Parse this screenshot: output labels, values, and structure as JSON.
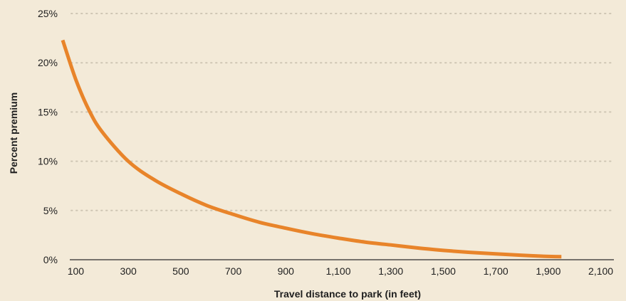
{
  "chart_data": {
    "type": "line",
    "xlabel": "Travel distance to park (in feet)",
    "ylabel": "Percent premium",
    "xlim": [
      50,
      2150
    ],
    "ylim": [
      0,
      25
    ],
    "x_ticks": [
      100,
      300,
      500,
      700,
      900,
      1100,
      1300,
      1500,
      1700,
      1900,
      2100
    ],
    "x_tick_labels": [
      "100",
      "300",
      "500",
      "700",
      "900",
      "1,100",
      "1,300",
      "1,500",
      "1,700",
      "1,900",
      "2,100"
    ],
    "y_ticks": [
      0,
      5,
      10,
      15,
      20,
      25
    ],
    "y_tick_labels": [
      "0%",
      "5%",
      "10%",
      "15%",
      "20%",
      "25%"
    ],
    "grid": true,
    "line_color": "#e8842a",
    "series": [
      {
        "x": [
          50,
          100,
          150,
          200,
          300,
          400,
          500,
          600,
          700,
          800,
          900,
          1000,
          1100,
          1200,
          1300,
          1400,
          1500,
          1600,
          1700,
          1800,
          1900,
          1950
        ],
        "y": [
          22.3,
          18.3,
          15.2,
          13.0,
          10.0,
          8.1,
          6.7,
          5.5,
          4.6,
          3.8,
          3.2,
          2.65,
          2.2,
          1.8,
          1.5,
          1.2,
          0.95,
          0.75,
          0.6,
          0.45,
          0.33,
          0.3
        ]
      }
    ]
  }
}
